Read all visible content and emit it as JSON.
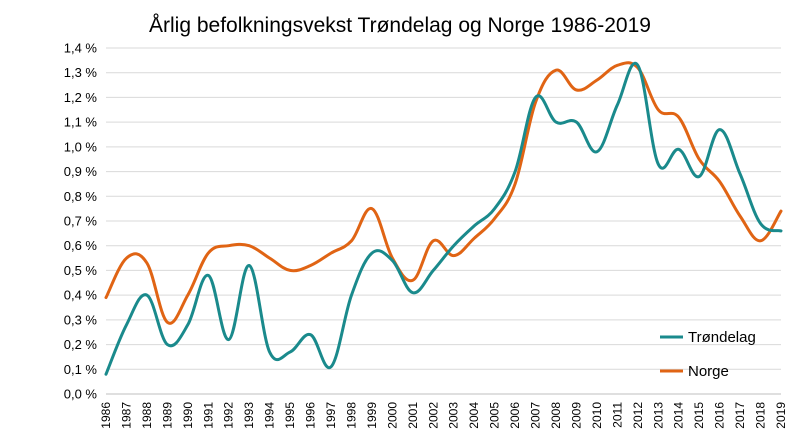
{
  "chart_data": {
    "type": "line",
    "title": "Årlig befolkningsvekst  Trøndelag og Norge 1986-2019",
    "xlabel": "",
    "ylabel": "",
    "ylim": [
      0,
      1.4
    ],
    "y_ticks": [
      "0,0 %",
      "0,1 %",
      "0,2 %",
      "0,3 %",
      "0,4 %",
      "0,5 %",
      "0,6 %",
      "0,7 %",
      "0,8 %",
      "0,9 %",
      "1,0 %",
      "1,1 %",
      "1,2 %",
      "1,3 %",
      "1,4 %"
    ],
    "categories": [
      "1986",
      "1987",
      "1988",
      "1989",
      "1990",
      "1991",
      "1992",
      "1993",
      "1994",
      "1995",
      "1996",
      "1997",
      "1998",
      "1999",
      "2000",
      "2001",
      "2002",
      "2003",
      "2004",
      "2005",
      "2006",
      "2007",
      "2008",
      "2009",
      "2010",
      "2011",
      "2012",
      "2013",
      "2014",
      "2015",
      "2016",
      "2017",
      "2018",
      "2019"
    ],
    "series": [
      {
        "name": "Trøndelag",
        "color": "#1a8a8c",
        "values": [
          0.08,
          0.28,
          0.4,
          0.2,
          0.28,
          0.48,
          0.22,
          0.52,
          0.17,
          0.17,
          0.24,
          0.11,
          0.4,
          0.57,
          0.54,
          0.41,
          0.5,
          0.6,
          0.68,
          0.75,
          0.9,
          1.2,
          1.1,
          1.1,
          0.98,
          1.17,
          1.33,
          0.93,
          0.99,
          0.88,
          1.07,
          0.89,
          0.69,
          0.66
        ]
      },
      {
        "name": "Norge",
        "color": "#e06414",
        "values": [
          0.39,
          0.55,
          0.53,
          0.29,
          0.4,
          0.57,
          0.6,
          0.6,
          0.55,
          0.5,
          0.52,
          0.57,
          0.62,
          0.75,
          0.55,
          0.46,
          0.62,
          0.56,
          0.63,
          0.71,
          0.85,
          1.18,
          1.31,
          1.23,
          1.27,
          1.33,
          1.32,
          1.15,
          1.12,
          0.95,
          0.86,
          0.72,
          0.62,
          0.74
        ]
      }
    ],
    "legend_position": "bottom-right",
    "grid": true
  }
}
